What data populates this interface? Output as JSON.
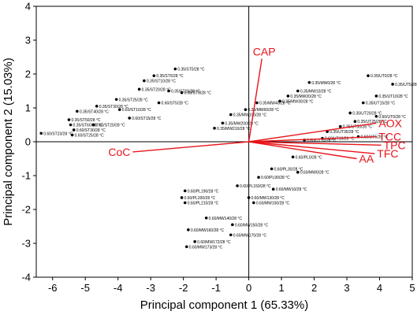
{
  "chart_data": {
    "type": "scatter",
    "xlabel": "Principal component 1 (65.33%)",
    "ylabel": "Principal component 2 (15.03%)",
    "xlim": [
      -6.5,
      5
    ],
    "ylim": [
      -4,
      4
    ],
    "xticks": [
      "-6",
      "-5",
      "-4",
      "-3",
      "-2",
      "-1",
      "0",
      "1",
      "2",
      "3",
      "4",
      "5"
    ],
    "yticks": [
      "-4",
      "-3",
      "-2",
      "-1",
      "0",
      "1",
      "2",
      "3",
      "4"
    ],
    "grid": false,
    "colors": {
      "points": "#000000",
      "loadings": "#e8141b",
      "zero_lines": "#000000"
    },
    "scores": [
      {
        "label": "0.35/ST0/28 °C",
        "x": -2.25,
        "y": 2.15
      },
      {
        "label": "0.35/ST5/28 °C",
        "x": -2.9,
        "y": 1.95
      },
      {
        "label": "0.35/ST10/28 °C",
        "x": -3.2,
        "y": 1.8
      },
      {
        "label": "0.35/ST20/28 °C",
        "x": -3.35,
        "y": 1.55
      },
      {
        "label": "0.35/ST15/28 °C",
        "x": -2.45,
        "y": 1.5
      },
      {
        "label": "0.60/ST0/28 °C",
        "x": -2.05,
        "y": 1.45
      },
      {
        "label": "0.35/ST25/28 °C",
        "x": -4.05,
        "y": 1.25
      },
      {
        "label": "0.60/ST5/28 °C",
        "x": -2.75,
        "y": 1.15
      },
      {
        "label": "0.35/ST30/28 °C",
        "x": -4.65,
        "y": 1.05
      },
      {
        "label": "0.60/ST10/28 °C",
        "x": -3.95,
        "y": 0.95
      },
      {
        "label": "0.35/ST40/28 °C",
        "x": -5.25,
        "y": 0.9
      },
      {
        "label": "0.60/ST15/28 °C",
        "x": -3.65,
        "y": 0.7
      },
      {
        "label": "0.35/ST50/28 °C",
        "x": -5.5,
        "y": 0.65
      },
      {
        "label": "0.35/ST60/28 °C",
        "x": -5.45,
        "y": 0.5
      },
      {
        "label": "0.60/ST20/28 °C",
        "x": -4.75,
        "y": 0.5
      },
      {
        "label": "0.60/ST30/28 °C",
        "x": -5.35,
        "y": 0.35
      },
      {
        "label": "0.60/ST23/28 °C",
        "x": -6.35,
        "y": 0.25
      },
      {
        "label": "0.60/ST25/28 °C",
        "x": -5.4,
        "y": 0.2
      },
      {
        "label": "0.35/MW0/28 °C",
        "x": 1.85,
        "y": 1.75
      },
      {
        "label": "0.35/MW10/28 °C",
        "x": 1.5,
        "y": 1.5
      },
      {
        "label": "0.35/MW20/28 °C",
        "x": 1.2,
        "y": 1.35
      },
      {
        "label": "0.35/MW30/28 °C",
        "x": 0.95,
        "y": 1.2
      },
      {
        "label": "0.35/MW40/28 °C",
        "x": 0.25,
        "y": 1.15
      },
      {
        "label": "0.35/MW60/28 °C",
        "x": -0.1,
        "y": 0.95
      },
      {
        "label": "0.35/MW100/28 °C",
        "x": -0.55,
        "y": 0.8
      },
      {
        "label": "0.35/MW200/28 °C",
        "x": -0.8,
        "y": 0.55
      },
      {
        "label": "0.35/MW210/28 °C",
        "x": -1.05,
        "y": 0.4
      },
      {
        "label": "0.35/UT0/28 °C",
        "x": 3.65,
        "y": 1.95
      },
      {
        "label": "0.35/UT5/28 °C",
        "x": 4.4,
        "y": 1.7
      },
      {
        "label": "0.35/UT10/28 °C",
        "x": 3.9,
        "y": 1.35
      },
      {
        "label": "0.35/UT15/28 °C",
        "x": 3.5,
        "y": 1.15
      },
      {
        "label": "0.35/UT20/28 °C",
        "x": 3.1,
        "y": 0.85
      },
      {
        "label": "0.60/UT0/28 °C",
        "x": 3.9,
        "y": 0.75
      },
      {
        "label": "0.35/UT25/28 °C",
        "x": 3.25,
        "y": 0.6
      },
      {
        "label": "0.35/UT30/28 °C",
        "x": 2.8,
        "y": 0.45
      },
      {
        "label": "0.35/UT35/28 °C",
        "x": 2.4,
        "y": 0.3
      },
      {
        "label": "0.60/UT5/28 °C",
        "x": 3.35,
        "y": 0.15
      },
      {
        "label": "0.60/UT10/28 °C",
        "x": 2.25,
        "y": 0.1
      },
      {
        "label": "0.60/UT15/28 °C",
        "x": 1.7,
        "y": 0.05
      },
      {
        "label": "0.60/PL0/28 °C",
        "x": 1.35,
        "y": -0.45
      },
      {
        "label": "0.60/PL30/28 °C",
        "x": 0.7,
        "y": -0.8
      },
      {
        "label": "0.60/PL90/28 °C",
        "x": 0.3,
        "y": -1.05
      },
      {
        "label": "0.60/PL150/28 °C",
        "x": -0.35,
        "y": -1.3
      },
      {
        "label": "0.60/PL190/28 °C",
        "x": -1.95,
        "y": -1.45
      },
      {
        "label": "0.60/PL200/28 °C",
        "x": -2.05,
        "y": -1.65
      },
      {
        "label": "0.60/PL210/28 °C",
        "x": -1.95,
        "y": -1.8
      },
      {
        "label": "0.60/MW0/28 °C",
        "x": 1.5,
        "y": -0.9
      },
      {
        "label": "0.60/MW10/28 °C",
        "x": 0.75,
        "y": -1.4
      },
      {
        "label": "0.60/MW100/28 °C",
        "x": 0.15,
        "y": -1.8
      },
      {
        "label": "0.60/MW130/28 °C",
        "x": 0.0,
        "y": -1.65
      },
      {
        "label": "0.60/MW140/28 °C",
        "x": -1.3,
        "y": -2.25
      },
      {
        "label": "0.60/MW150/28 °C",
        "x": -0.5,
        "y": -2.45
      },
      {
        "label": "0.60/MW160/28 °C",
        "x": -1.85,
        "y": -2.6
      },
      {
        "label": "0.60/MW170/28 °C",
        "x": -0.55,
        "y": -2.75
      },
      {
        "label": "0.60/MW172/28 °C",
        "x": -1.65,
        "y": -2.95
      },
      {
        "label": "0.60/MW173/28 °C",
        "x": -1.9,
        "y": -3.1
      }
    ],
    "loadings": [
      {
        "label": "CAP",
        "x": 0.4,
        "y": 2.45
      },
      {
        "label": "CoC",
        "x": -3.55,
        "y": -0.3
      },
      {
        "label": "AOX",
        "x": 3.9,
        "y": 0.55
      },
      {
        "label": "TCC",
        "x": 3.9,
        "y": 0.15
      },
      {
        "label": "TPC",
        "x": 4.05,
        "y": -0.1
      },
      {
        "label": "TFC",
        "x": 3.85,
        "y": -0.35
      },
      {
        "label": "AA",
        "x": 3.3,
        "y": -0.5
      }
    ]
  }
}
